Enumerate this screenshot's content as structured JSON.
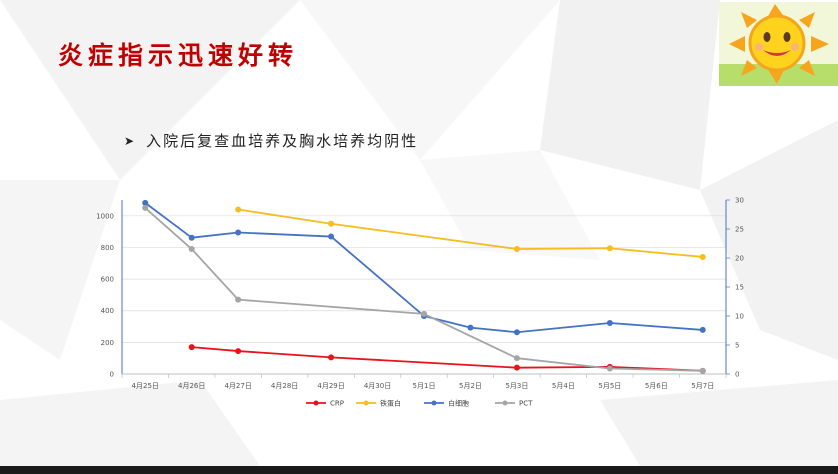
{
  "slide": {
    "title": "炎症指示迅速好转",
    "bullet": "入院后复查血培养及胸水培养均阴性"
  },
  "colors": {
    "title": "#c00000",
    "crp": "#e8121a",
    "ferritin": "#f5bd1f",
    "wbc": "#4472c4",
    "pct": "#a5a5a5"
  },
  "chart_data": {
    "type": "line",
    "categories": [
      "4月25日",
      "4月26日",
      "4月27日",
      "4月28日",
      "4月29日",
      "4月30日",
      "5月1日",
      "5月2日",
      "5月3日",
      "5月4日",
      "5月5日",
      "5月6日",
      "5月7日"
    ],
    "left_axis": {
      "min": 0,
      "max": 1100,
      "ticks": [
        0,
        200,
        400,
        600,
        800,
        1000
      ]
    },
    "right_axis": {
      "min": 0,
      "max": 30,
      "ticks": [
        0,
        5,
        10,
        15,
        20,
        25,
        30
      ]
    },
    "grid": true,
    "legend_position": "bottom",
    "series": [
      {
        "name": "CRP",
        "axis": "left",
        "color": "#e8121a",
        "values": [
          null,
          170,
          145,
          null,
          105,
          null,
          null,
          null,
          40,
          null,
          45,
          null,
          20
        ]
      },
      {
        "name": "铁蛋白",
        "axis": "left",
        "color": "#f5bd1f",
        "values": [
          null,
          null,
          1040,
          null,
          950,
          null,
          null,
          null,
          790,
          null,
          795,
          null,
          740
        ]
      },
      {
        "name": "白细胞",
        "axis": "right",
        "color": "#4472c4",
        "values": [
          29.5,
          23.5,
          24.4,
          null,
          23.7,
          null,
          10,
          8,
          7.2,
          null,
          8.8,
          null,
          7.6
        ]
      },
      {
        "name": "PCT",
        "axis": "left",
        "color": "#a5a5a5",
        "values": [
          1050,
          790,
          470,
          null,
          null,
          null,
          380,
          null,
          100,
          null,
          35,
          null,
          20
        ]
      }
    ]
  }
}
